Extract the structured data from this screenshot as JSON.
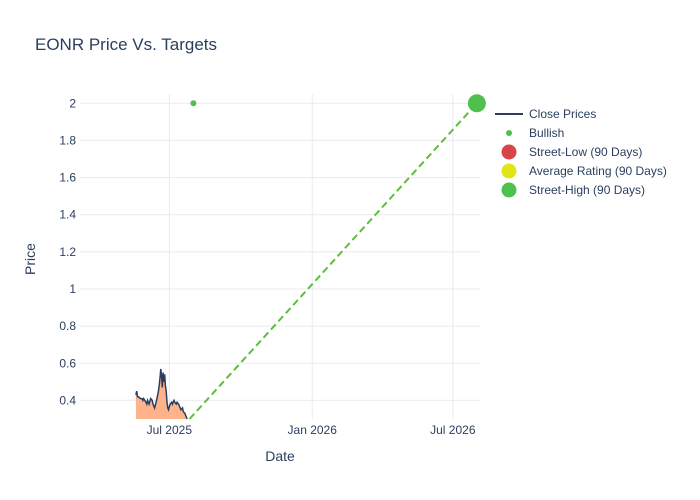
{
  "chart_data": {
    "type": "line",
    "title": "EONR Price Vs. Targets",
    "xlabel": "Date",
    "ylabel": "Price",
    "x_ticks": [
      "Jul 2025",
      "Jan 2026",
      "Jul 2026"
    ],
    "y_ticks": [
      "0.4",
      "0.6",
      "0.8",
      "1",
      "1.2",
      "1.4",
      "1.6",
      "1.8",
      "2"
    ],
    "xlim": [
      "2025-03-08",
      "2026-08-05"
    ],
    "ylim": [
      0.3,
      2.05
    ],
    "grid": true,
    "legend_position": "right",
    "legend": [
      "Close Prices",
      "Bullish",
      "Street-Low (90 Days)",
      "Average Rating (90 Days)",
      "Street-High (90 Days)"
    ],
    "colors": {
      "close": "#2a3f5f",
      "area": "#ffb38a",
      "bullish": "#4ec04e",
      "street_low": "#d9434a",
      "average": "#e3e31a",
      "street_high": "#4ec04e",
      "target_line": "#5bbf3c"
    },
    "series": [
      {
        "name": "Close Prices",
        "points": [
          [
            "2025-05-19",
            0.43
          ],
          [
            "2025-05-20",
            0.45
          ],
          [
            "2025-05-21",
            0.42
          ],
          [
            "2025-05-22",
            0.42
          ],
          [
            "2025-05-25",
            0.41
          ],
          [
            "2025-05-27",
            0.41
          ],
          [
            "2025-05-28",
            0.4
          ],
          [
            "2025-05-29",
            0.41
          ],
          [
            "2025-06-01",
            0.39
          ],
          [
            "2025-06-02",
            0.38
          ],
          [
            "2025-06-03",
            0.4
          ],
          [
            "2025-06-04",
            0.39
          ],
          [
            "2025-06-05",
            0.38
          ],
          [
            "2025-06-07",
            0.41
          ],
          [
            "2025-06-09",
            0.4
          ],
          [
            "2025-06-10",
            0.38
          ],
          [
            "2025-06-11",
            0.37
          ],
          [
            "2025-06-12",
            0.36
          ],
          [
            "2025-06-14",
            0.39
          ],
          [
            "2025-06-15",
            0.41
          ],
          [
            "2025-06-16",
            0.43
          ],
          [
            "2025-06-17",
            0.45
          ],
          [
            "2025-06-18",
            0.48
          ],
          [
            "2025-06-19",
            0.52
          ],
          [
            "2025-06-20",
            0.57
          ],
          [
            "2025-06-21",
            0.53
          ],
          [
            "2025-06-22",
            0.47
          ],
          [
            "2025-06-23",
            0.55
          ],
          [
            "2025-06-24",
            0.5
          ],
          [
            "2025-06-25",
            0.54
          ],
          [
            "2025-06-26",
            0.48
          ],
          [
            "2025-06-27",
            0.45
          ],
          [
            "2025-06-28",
            0.39
          ],
          [
            "2025-06-29",
            0.36
          ],
          [
            "2025-06-30",
            0.35
          ],
          [
            "2025-07-02",
            0.38
          ],
          [
            "2025-07-04",
            0.39
          ],
          [
            "2025-07-05",
            0.38
          ],
          [
            "2025-07-07",
            0.4
          ],
          [
            "2025-07-08",
            0.39
          ],
          [
            "2025-07-10",
            0.38
          ],
          [
            "2025-07-11",
            0.39
          ],
          [
            "2025-07-13",
            0.38
          ],
          [
            "2025-07-15",
            0.36
          ],
          [
            "2025-07-16",
            0.35
          ],
          [
            "2025-07-18",
            0.36
          ],
          [
            "2025-07-19",
            0.34
          ],
          [
            "2025-07-21",
            0.33
          ],
          [
            "2025-07-22",
            0.32
          ],
          [
            "2025-07-24",
            0.3
          ]
        ]
      },
      {
        "name": "Bullish",
        "points": [
          [
            "2025-08-01",
            2.0
          ]
        ]
      },
      {
        "name": "Street-High (90 Days)",
        "points": [
          [
            "2026-08-01",
            2.0
          ]
        ]
      }
    ],
    "target_line": {
      "from": [
        "2025-07-27",
        0.3
      ],
      "to": [
        "2026-08-01",
        2.0
      ]
    }
  }
}
